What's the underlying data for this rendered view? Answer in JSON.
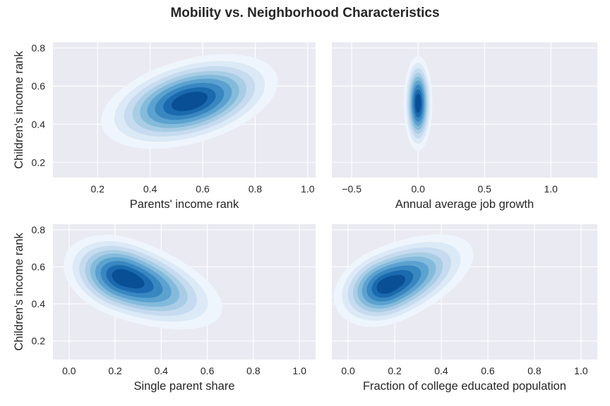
{
  "figure": {
    "title": "Mobility vs. Neighborhood Characteristics"
  },
  "colors": {
    "background": "#eaeaf2",
    "grid": "#ffffff",
    "palette": "Blues"
  },
  "chart_data": [
    {
      "id": "parents-income",
      "type": "kde-contour",
      "xlabel": "Parents' income rank",
      "ylabel": "Children's income rank",
      "xlim": [
        0.03,
        1.03
      ],
      "ylim": [
        0.12,
        0.83
      ],
      "xticks": [
        0.2,
        0.4,
        0.6,
        0.8,
        1.0
      ],
      "xtick_labels": [
        "0.2",
        "0.4",
        "0.6",
        "0.8",
        "1.0"
      ],
      "yticks": [
        0.2,
        0.4,
        0.6,
        0.8
      ],
      "ytick_labels": [
        "0.2",
        "0.4",
        "0.6",
        "0.8"
      ],
      "grid": true,
      "mode": {
        "x": 0.55,
        "y": 0.52
      },
      "spread": {
        "x": 0.355,
        "y": 0.225
      },
      "tilt_deg": 16,
      "skew": 0
    },
    {
      "id": "job-growth",
      "type": "kde-contour",
      "xlabel": "Annual average job growth",
      "ylabel": "",
      "xlim": [
        -0.65,
        1.35
      ],
      "ylim": [
        0.12,
        0.83
      ],
      "xticks": [
        -0.5,
        0.0,
        0.5,
        1.0
      ],
      "xtick_labels": [
        "−0.5",
        "0.0",
        "0.5",
        "1.0"
      ],
      "yticks": [
        0.2,
        0.4,
        0.6,
        0.8
      ],
      "ytick_labels": [
        "",
        "",
        "",
        ""
      ],
      "grid": true,
      "mode": {
        "x": 0.0,
        "y": 0.51
      },
      "spread": {
        "x": 0.11,
        "y": 0.255
      },
      "tilt_deg": 0,
      "skew": 0
    },
    {
      "id": "single-parent",
      "type": "kde-contour",
      "xlabel": "Single parent share",
      "ylabel": "Children's income rank",
      "xlim": [
        -0.07,
        1.07
      ],
      "ylim": [
        0.1,
        0.83
      ],
      "xticks": [
        0.0,
        0.2,
        0.4,
        0.6,
        0.8,
        1.0
      ],
      "xtick_labels": [
        "0.0",
        "0.2",
        "0.4",
        "0.6",
        "0.8",
        "1.0"
      ],
      "yticks": [
        0.2,
        0.4,
        0.6,
        0.8
      ],
      "ytick_labels": [
        "0.2",
        "0.4",
        "0.6",
        "0.8"
      ],
      "grid": true,
      "mode": {
        "x": 0.24,
        "y": 0.54
      },
      "spread": {
        "x": 0.34,
        "y": 0.22
      },
      "tilt_deg": -20,
      "skew": 0.35
    },
    {
      "id": "college-educated",
      "type": "kde-contour",
      "xlabel": "Fraction of college educated population",
      "ylabel": "",
      "xlim": [
        -0.07,
        1.07
      ],
      "ylim": [
        0.1,
        0.83
      ],
      "xticks": [
        0.0,
        0.2,
        0.4,
        0.6,
        0.8,
        1.0
      ],
      "xtick_labels": [
        "0.0",
        "0.2",
        "0.4",
        "0.6",
        "0.8",
        "1.0"
      ],
      "yticks": [
        0.2,
        0.4,
        0.6,
        0.8
      ],
      "ytick_labels": [
        "",
        "",
        "",
        ""
      ],
      "grid": true,
      "mode": {
        "x": 0.17,
        "y": 0.5
      },
      "spread": {
        "x": 0.3,
        "y": 0.21
      },
      "tilt_deg": 24,
      "skew": 0.35
    }
  ]
}
